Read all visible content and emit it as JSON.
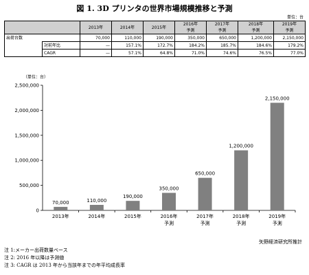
{
  "title": "図 1. 3D プリンタの世界市場規模推移と予測",
  "table": {
    "unit_label": "単位：台",
    "headers": [
      {
        "l1": "2013年",
        "l2": ""
      },
      {
        "l1": "2014年",
        "l2": ""
      },
      {
        "l1": "2015年",
        "l2": ""
      },
      {
        "l1": "2016年",
        "l2": "予測"
      },
      {
        "l1": "2017年",
        "l2": "予測"
      },
      {
        "l1": "2018年",
        "l2": "予測"
      },
      {
        "l1": "2019年",
        "l2": "予測"
      }
    ],
    "rows": [
      {
        "label": "出荷台数",
        "values": [
          "70,000",
          "110,000",
          "190,000",
          "350,000",
          "650,000",
          "1,200,000",
          "2,150,000"
        ]
      },
      {
        "label": "対前年比",
        "values": [
          "—",
          "157.1%",
          "172.7%",
          "184.2%",
          "185.7%",
          "184.6%",
          "179.2%"
        ]
      },
      {
        "label": "CAGR",
        "values": [
          "—",
          "57.1%",
          "64.8%",
          "71.0%",
          "74.6%",
          "76.5%",
          "77.0%"
        ]
      }
    ]
  },
  "chart_data": {
    "type": "bar",
    "unit_label": "（単位：台）",
    "categories": [
      {
        "l1": "2013年",
        "l2": ""
      },
      {
        "l1": "2014年",
        "l2": ""
      },
      {
        "l1": "2015年",
        "l2": ""
      },
      {
        "l1": "2016年",
        "l2": "予測"
      },
      {
        "l1": "2017年",
        "l2": "予測"
      },
      {
        "l1": "2018年",
        "l2": "予測"
      },
      {
        "l1": "2019年",
        "l2": "予測"
      }
    ],
    "values": [
      70000,
      110000,
      190000,
      350000,
      650000,
      1200000,
      2150000
    ],
    "value_labels": [
      "70,000",
      "110,000",
      "190,000",
      "350,000",
      "650,000",
      "1,200,000",
      "2,150,000"
    ],
    "ylim": [
      0,
      2500000
    ],
    "y_ticks": [
      0,
      500000,
      1000000,
      1500000,
      2000000,
      2500000
    ],
    "y_tick_labels": [
      "0",
      "500,000",
      "1,000,000",
      "1,500,000",
      "2,000,000",
      "2,500,000"
    ],
    "bar_color": "#808080",
    "grid": false
  },
  "source": "矢野経済研究所推計",
  "notes": [
    "注 1:メーカー出荷数量ベース",
    "注 2: 2016 年以降は予測値",
    "注 3: CAGR は 2013 年から当該年までの年平均成長率"
  ]
}
